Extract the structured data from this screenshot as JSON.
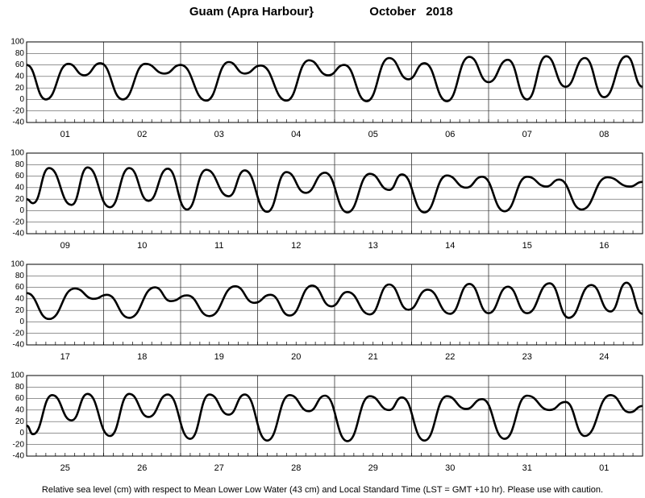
{
  "title": "Guam (Apra Harbour}",
  "period": "October   2018",
  "note": "Relative sea level (cm) with respect to Mean Lower Low Water (43 cm) and Local Standard Time (LST = GMT +10 hr). Please use with caution.",
  "chart_data": [
    {
      "type": "line",
      "color": "#000000",
      "grid": true,
      "minor_tick_interval": 3,
      "categories": [
        "01",
        "02",
        "03",
        "04",
        "05",
        "06",
        "07",
        "08"
      ],
      "x": [
        0,
        6,
        13,
        18,
        23,
        30,
        37,
        43,
        48,
        56,
        63,
        68,
        73,
        81,
        88,
        94,
        99,
        106,
        113,
        119,
        124,
        131,
        138,
        144,
        150,
        156,
        162,
        168,
        174,
        180,
        187,
        192
      ],
      "values": [
        60,
        0,
        62,
        42,
        63,
        0,
        62,
        45,
        60,
        -2,
        65,
        45,
        59,
        -2,
        68,
        42,
        60,
        -3,
        72,
        35,
        63,
        -3,
        74,
        30,
        69,
        0,
        75,
        22,
        72,
        4,
        75,
        22
      ],
      "xlim": [
        0,
        192
      ],
      "xticks": [
        0,
        24,
        48,
        72,
        96,
        120,
        144,
        168,
        192
      ],
      "ylim": [
        -40,
        100
      ],
      "yticks": [
        -40,
        -20,
        0,
        20,
        40,
        60,
        80,
        100
      ]
    },
    {
      "type": "line",
      "color": "#000000",
      "grid": true,
      "minor_tick_interval": 3,
      "categories": [
        "09",
        "10",
        "11",
        "12",
        "13",
        "14",
        "15",
        "16"
      ],
      "x": [
        0,
        2,
        7,
        14,
        19,
        26,
        32,
        38,
        44,
        50,
        56,
        63,
        68,
        75,
        81,
        87,
        93,
        100,
        107,
        113,
        117,
        124,
        131,
        137,
        142,
        149,
        156,
        162,
        166,
        173,
        181,
        188,
        192
      ],
      "values": [
        20,
        13,
        74,
        10,
        75,
        6,
        74,
        17,
        73,
        2,
        71,
        25,
        70,
        -2,
        67,
        31,
        66,
        -3,
        64,
        36,
        63,
        -3,
        61,
        40,
        59,
        -1,
        59,
        42,
        54,
        2,
        58,
        42,
        50
      ],
      "xlim": [
        0,
        192
      ],
      "xticks": [
        0,
        24,
        48,
        72,
        96,
        120,
        144,
        168,
        192
      ],
      "ylim": [
        -40,
        100
      ],
      "yticks": [
        -40,
        -20,
        0,
        20,
        40,
        60,
        80,
        100
      ]
    },
    {
      "type": "line",
      "color": "#000000",
      "grid": true,
      "minor_tick_interval": 3,
      "categories": [
        "17",
        "18",
        "19",
        "20",
        "21",
        "22",
        "23",
        "24"
      ],
      "x": [
        0,
        7,
        15,
        21,
        25,
        32,
        40,
        45,
        50,
        57,
        65,
        71,
        76,
        82,
        89,
        95,
        100,
        107,
        113,
        119,
        125,
        132,
        138,
        144,
        150,
        156,
        163,
        169,
        176,
        182,
        187,
        192
      ],
      "values": [
        50,
        5,
        58,
        40,
        47,
        7,
        60,
        36,
        46,
        10,
        62,
        33,
        47,
        11,
        63,
        27,
        52,
        13,
        65,
        21,
        56,
        14,
        66,
        15,
        61,
        15,
        67,
        7,
        64,
        18,
        68,
        14
      ],
      "xlim": [
        0,
        192
      ],
      "xticks": [
        0,
        24,
        48,
        72,
        96,
        120,
        144,
        168,
        192
      ],
      "ylim": [
        -40,
        100
      ],
      "yticks": [
        -40,
        -20,
        0,
        20,
        40,
        60,
        80,
        100
      ]
    },
    {
      "type": "line",
      "color": "#000000",
      "grid": true,
      "minor_tick_interval": 3,
      "categories": [
        "25",
        "26",
        "27",
        "28",
        "29",
        "30",
        "31",
        "01"
      ],
      "x": [
        0,
        2,
        8,
        14,
        19,
        26,
        32,
        38,
        44,
        51,
        57,
        63,
        68,
        75,
        82,
        88,
        93,
        100,
        107,
        113,
        117,
        124,
        131,
        137,
        142,
        149,
        156,
        163,
        168,
        174,
        182,
        188,
        192
      ],
      "values": [
        13,
        -2,
        66,
        22,
        68,
        -5,
        68,
        28,
        67,
        -10,
        67,
        32,
        67,
        -13,
        66,
        38,
        65,
        -14,
        64,
        40,
        62,
        -13,
        64,
        42,
        59,
        -10,
        65,
        40,
        54,
        -5,
        66,
        36,
        47
      ],
      "xlim": [
        0,
        192
      ],
      "xticks": [
        0,
        24,
        48,
        72,
        96,
        120,
        144,
        168,
        192
      ],
      "ylim": [
        -40,
        100
      ],
      "yticks": [
        -40,
        -20,
        0,
        20,
        40,
        60,
        80,
        100
      ]
    }
  ]
}
